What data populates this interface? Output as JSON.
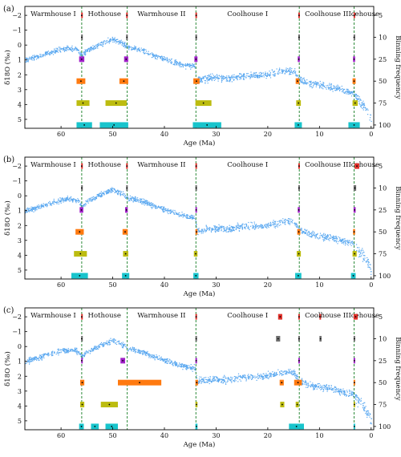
{
  "figure": {
    "epoch_names": [
      "Warmhouse I",
      "Hothouse",
      "Warmhouse II",
      "Coolhouse I",
      "Coolhouse II",
      "Icehouse"
    ],
    "boundaries": [
      56,
      47.2,
      33.9,
      13.9,
      3.3
    ],
    "x_ticks": [
      60,
      50,
      40,
      30,
      20,
      10,
      0
    ],
    "y_ticks": [
      -2,
      -1,
      0,
      1,
      2,
      3,
      4,
      5
    ],
    "y_tick_labels": [
      "−2",
      "−1",
      "0",
      "1",
      "2",
      "3",
      "4",
      "5"
    ],
    "right_ticks": [
      "5",
      "10",
      "25",
      "50",
      "75",
      "100"
    ],
    "bin_colors": [
      "#e0302a",
      "#6e6e6e",
      "#a020c8",
      "#ff7a10",
      "#bcbc10",
      "#18c4cc"
    ],
    "point_color": "#5aa8f0",
    "boundary_color": "#2e8b3a"
  },
  "chart_data": [
    {
      "panel": "(a)",
      "type": "scatter",
      "xlabel": "Age (Ma)",
      "ylabel": "δ18O (‰)",
      "right_label": "Binning frequency",
      "xlim": [
        67,
        -0.5
      ],
      "ylim": [
        5.6,
        -2.6
      ],
      "y_inverted": true,
      "bins": [
        {
          "freq": "5",
          "intervals": [
            [
              56.1,
              55.9
            ],
            [
              47.4,
              47.1
            ],
            [
              34.0,
              33.7
            ],
            [
              14.1,
              13.8
            ],
            [
              3.4,
              3.2
            ]
          ]
        },
        {
          "freq": "10",
          "intervals": [
            [
              56.1,
              55.9
            ],
            [
              47.4,
              47.1
            ],
            [
              34.0,
              33.7
            ],
            [
              14.1,
              13.8
            ],
            [
              3.4,
              3.2
            ]
          ]
        },
        {
          "freq": "25",
          "intervals": [
            [
              56.5,
              55.5
            ],
            [
              47.8,
              47.0
            ],
            [
              34.2,
              33.6
            ],
            [
              14.2,
              13.8
            ],
            [
              3.5,
              3.1
            ]
          ]
        },
        {
          "freq": "50",
          "intervals": [
            [
              57.0,
              55.3
            ],
            [
              48.7,
              47.0
            ],
            [
              34.4,
              33.2
            ],
            [
              14.6,
              13.9
            ],
            [
              3.6,
              3.0
            ]
          ]
        },
        {
          "freq": "75",
          "intervals": [
            [
              57.0,
              54.5
            ],
            [
              51.4,
              47.3
            ],
            [
              34.0,
              30.9
            ],
            [
              14.5,
              13.6
            ],
            [
              3.6,
              2.6
            ]
          ]
        },
        {
          "freq": "100",
          "intervals": [
            [
              57.0,
              54.0
            ],
            [
              52.5,
              47.0
            ],
            [
              34.5,
              29.0
            ],
            [
              14.8,
              13.4
            ],
            [
              4.4,
              2.2
            ]
          ]
        }
      ]
    },
    {
      "panel": "(b)",
      "type": "scatter",
      "xlabel": "Age (Ma)",
      "ylabel": "δ18O (‰)",
      "right_label": "Binning frequency",
      "xlim": [
        67,
        -0.5
      ],
      "ylim": [
        5.6,
        -2.6
      ],
      "y_inverted": true,
      "bins": [
        {
          "freq": "5",
          "intervals": [
            [
              56.1,
              55.9
            ],
            [
              47.4,
              47.1
            ],
            [
              34.0,
              33.7
            ],
            [
              14.1,
              13.8
            ],
            [
              3.2,
              2.3
            ]
          ]
        },
        {
          "freq": "10",
          "intervals": [
            [
              56.1,
              55.9
            ],
            [
              47.4,
              47.1
            ],
            [
              34.0,
              33.7
            ],
            [
              14.1,
              13.8
            ],
            [
              3.4,
              2.9
            ]
          ]
        },
        {
          "freq": "25",
          "intervals": [
            [
              56.4,
              55.7
            ],
            [
              47.6,
              47.1
            ],
            [
              34.0,
              33.7
            ],
            [
              14.2,
              13.8
            ],
            [
              3.4,
              3.0
            ]
          ]
        },
        {
          "freq": "50",
          "intervals": [
            [
              57.2,
              55.6
            ],
            [
              48.1,
              47.1
            ],
            [
              34.0,
              33.6
            ],
            [
              14.3,
              13.7
            ],
            [
              3.5,
              3.1
            ]
          ]
        },
        {
          "freq": "75",
          "intervals": [
            [
              57.5,
              55.0
            ],
            [
              48.0,
              47.0
            ],
            [
              34.3,
              33.6
            ],
            [
              14.4,
              13.6
            ],
            [
              3.6,
              2.8
            ]
          ]
        },
        {
          "freq": "100",
          "intervals": [
            [
              58.0,
              54.8
            ],
            [
              48.2,
              46.8
            ],
            [
              34.4,
              33.4
            ],
            [
              14.7,
              13.5
            ],
            [
              3.9,
              3.0
            ]
          ]
        }
      ]
    },
    {
      "panel": "(c)",
      "type": "scatter",
      "xlabel": "Age (Ma)",
      "ylabel": "δ18O (‰)",
      "right_label": "Binning frequency",
      "xlim": [
        67,
        -0.5
      ],
      "ylim": [
        5.6,
        -2.6
      ],
      "y_inverted": true,
      "bins": [
        {
          "freq": "5",
          "intervals": [
            [
              56.1,
              55.9
            ],
            [
              34.0,
              33.7
            ],
            [
              18.0,
              17.2
            ],
            [
              14.1,
              13.8
            ],
            [
              10.0,
              9.8
            ],
            [
              3.4,
              2.6
            ]
          ]
        },
        {
          "freq": "10",
          "intervals": [
            [
              56.1,
              55.9
            ],
            [
              34.0,
              33.7
            ],
            [
              18.4,
              17.6
            ],
            [
              14.1,
              13.8
            ],
            [
              10.0,
              9.6
            ],
            [
              3.4,
              3.1
            ]
          ]
        },
        {
          "freq": "25",
          "intervals": [
            [
              56.1,
              55.9
            ],
            [
              48.5,
              47.6
            ],
            [
              34.0,
              33.7
            ],
            [
              14.1,
              13.8
            ],
            [
              3.4,
              3.1
            ]
          ]
        },
        {
          "freq": "50",
          "intervals": [
            [
              56.3,
              55.5
            ],
            [
              49.0,
              40.6
            ],
            [
              34.0,
              33.5
            ],
            [
              17.7,
              16.9
            ],
            [
              14.9,
              13.4
            ],
            [
              3.4,
              3.1
            ]
          ]
        },
        {
          "freq": "75",
          "intervals": [
            [
              56.3,
              55.5
            ],
            [
              52.3,
              49.0
            ],
            [
              34.0,
              33.6
            ],
            [
              17.6,
              16.8
            ],
            [
              14.6,
              14.0
            ],
            [
              3.4,
              3.1
            ]
          ]
        },
        {
          "freq": "100",
          "intervals": [
            [
              56.5,
              55.6
            ],
            [
              54.2,
              52.7
            ],
            [
              51.4,
              49.0
            ],
            [
              34.0,
              33.6
            ],
            [
              15.9,
              13.0
            ],
            [
              3.4,
              3.1
            ]
          ]
        }
      ]
    }
  ]
}
